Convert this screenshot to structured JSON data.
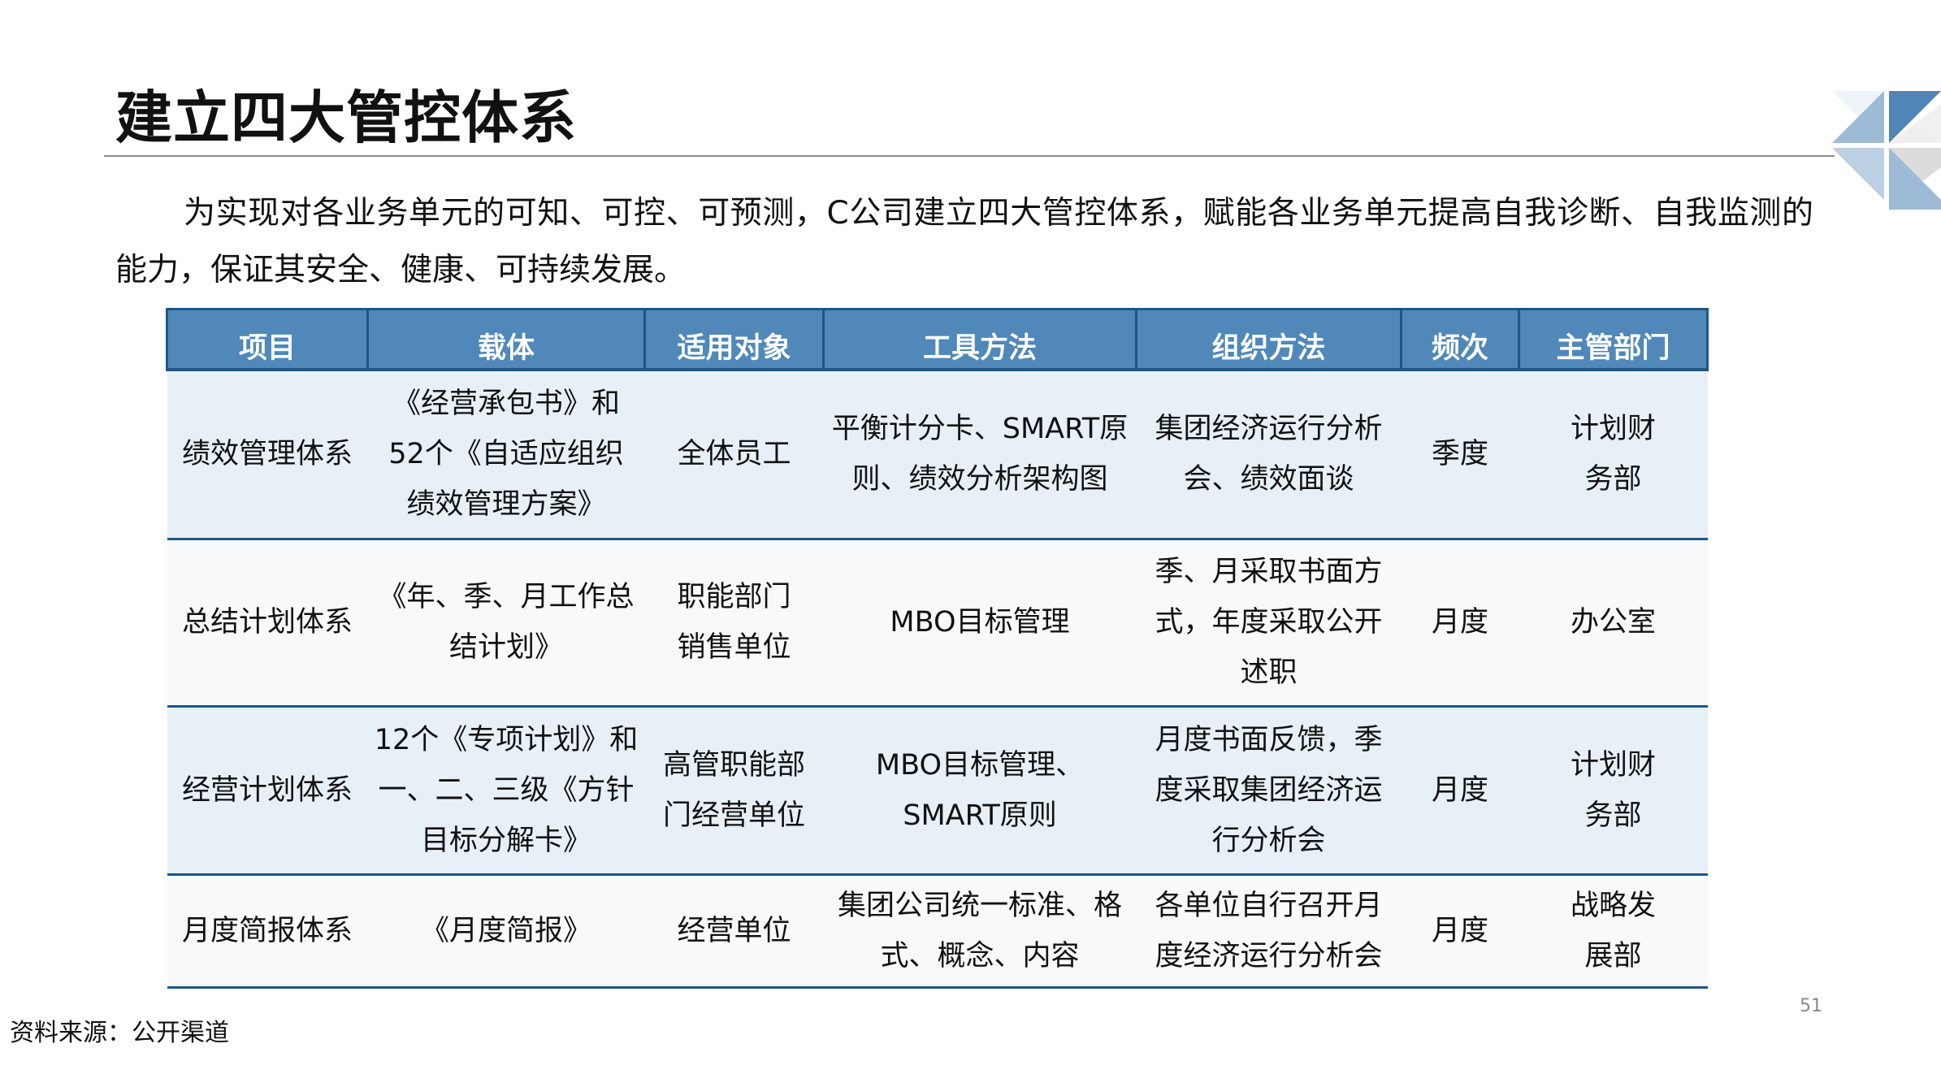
{
  "title": "建立四大管控体系",
  "intro": "为实现对各业务单元的可知、可控、可预测，C公司建立四大管控体系，赋能各业务单元提高自我诊断、自我监测的能力，保证其安全、健康、可持续发展。",
  "colors": {
    "header_bg": "#5088b9",
    "header_border": "#1d5686",
    "row_blue": "#e7f0f7",
    "row_light": "#f8f9fb"
  },
  "table": {
    "headers": [
      "项目",
      "载体",
      "适用对象",
      "工具方法",
      "组织方法",
      "频次",
      "主管部门"
    ],
    "rows": [
      [
        "绩效管理体系",
        "《经营承包书》和52个《自适应组织绩效管理方案》",
        "全体员工",
        "平衡计分卡、SMART原则、绩效分析架构图",
        "集团经济运行分析会、绩效面谈",
        "季度",
        "计划财务部"
      ],
      [
        "总结计划体系",
        "《年、季、月工作总结计划》",
        "职能部门销售单位",
        "MBO目标管理",
        "季、月采取书面方式，年度采取公开述职",
        "月度",
        "办公室"
      ],
      [
        "经营计划体系",
        "12个《专项计划》和一、二、三级《方针目标分解卡》",
        "高管职能部门经营单位",
        "MBO目标管理、SMART原则",
        "月度书面反馈，季度采取集团经济运行分析会",
        "月度",
        "计划财务部"
      ],
      [
        "月度简报体系",
        "《月度简报》",
        "经营单位",
        "集团公司统一标准、格式、概念、内容",
        "各单位自行召开月度经济运行分析会",
        "月度",
        "战略发展部"
      ]
    ]
  },
  "source": "资料来源：公开渠道",
  "page_number": "51"
}
